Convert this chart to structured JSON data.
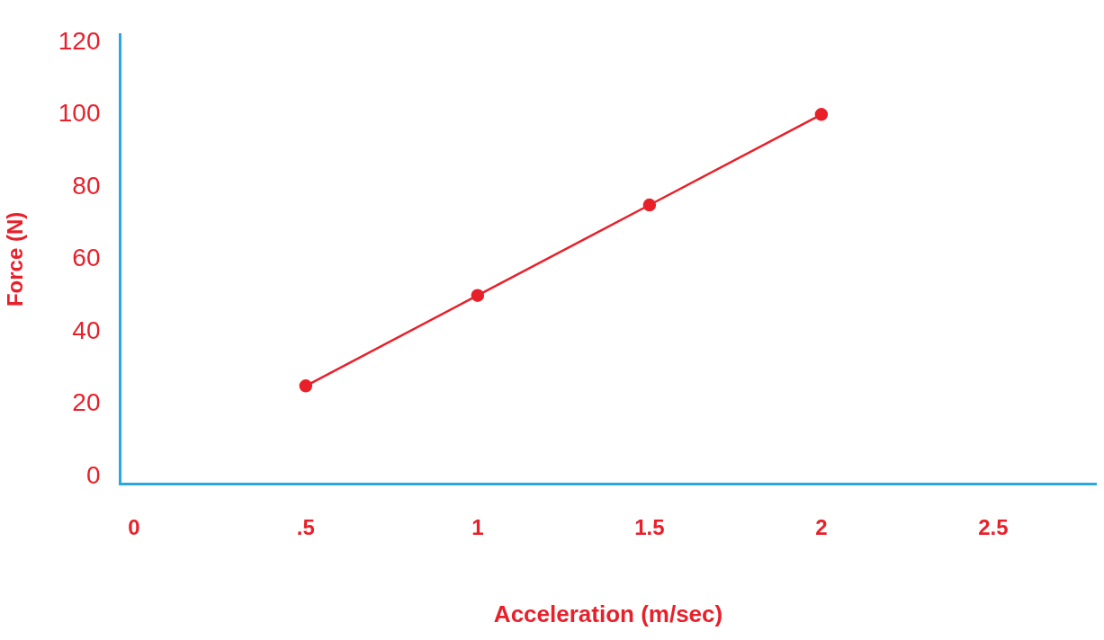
{
  "chart_data": {
    "type": "line",
    "xlabel": "Acceleration (m/sec)",
    "ylabel": "Force (N)",
    "x": [
      0.5,
      1,
      1.5,
      2
    ],
    "series": [
      {
        "color": "#e8202a",
        "values": [
          25,
          50,
          75,
          100
        ]
      }
    ],
    "xlim": [
      -0.04,
      2.8
    ],
    "xticks": [
      0,
      {
        "value": 0.5,
        "label": ".5"
      },
      1,
      1.5,
      2,
      2.5
    ],
    "ylim": [
      -2,
      122
    ],
    "yticks": [
      0,
      20,
      40,
      60,
      80,
      100,
      120
    ],
    "grid": false,
    "legend": false,
    "marker": "circle",
    "line_style": "solid"
  }
}
